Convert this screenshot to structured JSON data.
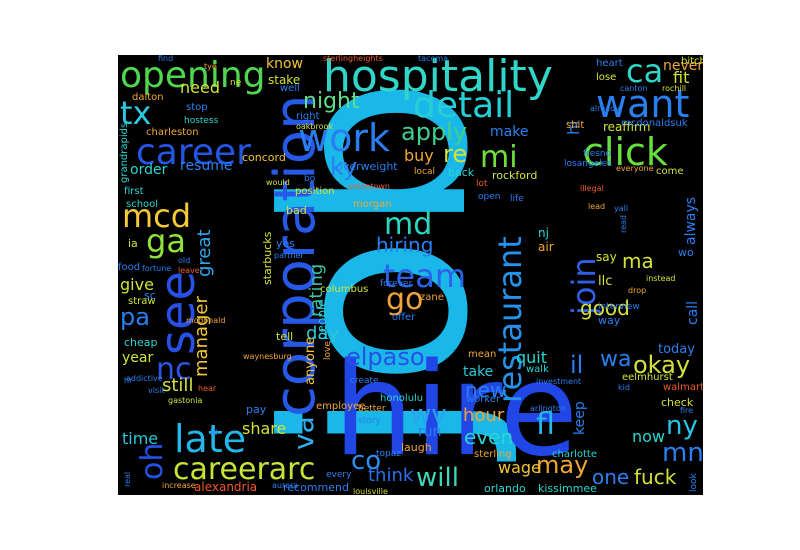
{
  "words": {
    "job": {
      "text": "job",
      "color": "#1ab8e8"
    },
    "hire": {
      "text": "hire",
      "color": "#2146e6"
    },
    "hospitality": {
      "text": "hospitality",
      "color": "#30d6c8"
    },
    "corporation": {
      "text": "corporation",
      "color": "#2559e6"
    },
    "opening": {
      "text": "opening",
      "color": "#4fd84f"
    },
    "work": {
      "text": "work",
      "color": "#2a7ff0"
    },
    "detail": {
      "text": "detail",
      "color": "#26cfd6"
    },
    "want": {
      "text": "want",
      "color": "#2a7ff0"
    },
    "click": {
      "text": "click",
      "color": "#66e040"
    },
    "career": {
      "text": "career",
      "color": "#2555e5"
    },
    "team": {
      "text": "team",
      "color": "#2b62e8"
    },
    "late": {
      "text": "late",
      "color": "#23b6ea"
    },
    "see": {
      "text": "see",
      "color": "#2650e6"
    },
    "restaurant": {
      "text": "restaurant",
      "color": "#2593ec"
    },
    "careerarc": {
      "text": "careerarc",
      "color": "#c8e338"
    },
    "mcd": {
      "text": "mcd",
      "color": "#f6c93a"
    },
    "ga": {
      "text": "ga",
      "color": "#8fe33a"
    },
    "nc": {
      "text": "nc",
      "color": "#2e54e6"
    },
    "oh": {
      "text": "oh",
      "color": "#2350e5"
    },
    "tx": {
      "text": "tx",
      "color": "#2ac9e0"
    },
    "md": {
      "text": "md",
      "color": "#2bd6c0"
    },
    "go": {
      "text": "go",
      "color": "#f0a43a"
    },
    "mi": {
      "text": "mi",
      "color": "#70e03c"
    },
    "apply": {
      "text": "apply",
      "color": "#3fd090"
    },
    "night": {
      "text": "night",
      "color": "#5fdd8a"
    },
    "join": {
      "text": "join",
      "color": "#2f5fe5"
    },
    "va": {
      "text": "va",
      "color": "#2fb0f0"
    },
    "elpaso": {
      "text": "elpaso",
      "color": "#2650e6"
    },
    "wv": {
      "text": "wv",
      "color": "#2aa2f0"
    },
    "fl": {
      "text": "fl",
      "color": "#24b8f0"
    },
    "co": {
      "text": "co",
      "color": "#2a8ff0"
    },
    "will": {
      "text": "will",
      "color": "#3fd5b8"
    },
    "think": {
      "text": "think",
      "color": "#2a70ee"
    },
    "may": {
      "text": "may",
      "color": "#f0a636"
    },
    "mn": {
      "text": "mn",
      "color": "#2a7ff0"
    },
    "ny": {
      "text": "ny",
      "color": "#27c3e6"
    },
    "okay": {
      "text": "okay",
      "color": "#d2e23a"
    },
    "ca": {
      "text": "ca",
      "color": "#30d6c8"
    },
    "ky": {
      "text": "ky",
      "color": "#2a7ff0"
    },
    "re": {
      "text": "re",
      "color": "#d2e23a"
    },
    "hiring": {
      "text": "hiring",
      "color": "#2a7ff0"
    },
    "pa": {
      "text": "pa",
      "color": "#2a7ff0"
    },
    "manager": {
      "text": "manager",
      "color": "#f2c53b"
    },
    "great": {
      "text": "great",
      "color": "#2fa6f0"
    },
    "rating": {
      "text": "rating",
      "color": "#3fbf9f"
    },
    "good": {
      "text": "good",
      "color": "#d7e23a"
    },
    "ma": {
      "text": "ma",
      "color": "#d2e23a"
    },
    "il": {
      "text": "il",
      "color": "#2a7ff0"
    },
    "wa": {
      "text": "wa",
      "color": "#2a7ff0"
    },
    "new": {
      "text": "new",
      "color": "#2a7ff0"
    },
    "hour": {
      "text": "hour",
      "color": "#f0a636"
    },
    "even": {
      "text": "even",
      "color": "#2ad6d0"
    },
    "wage": {
      "text": "wage",
      "color": "#f3c43a"
    },
    "fuck": {
      "text": "fuck",
      "color": "#d2e23a"
    },
    "one": {
      "text": "one",
      "color": "#2a7ff0"
    },
    "now": {
      "text": "now",
      "color": "#2ad6d0"
    },
    "day": {
      "text": "day",
      "color": "#28c8d8"
    },
    "quit": {
      "text": "quit",
      "color": "#2ad6d0"
    },
    "take": {
      "text": "take",
      "color": "#28c8d8"
    },
    "today": {
      "text": "today",
      "color": "#2a7ff0"
    },
    "still": {
      "text": "still",
      "color": "#d2e23a"
    },
    "time": {
      "text": "time",
      "color": "#28c8d8"
    },
    "share": {
      "text": "share",
      "color": "#d2e23a"
    },
    "need": {
      "text": "need",
      "color": "#d2e23a"
    },
    "know": {
      "text": "know",
      "color": "#f3c43a"
    },
    "make": {
      "text": "make",
      "color": "#2a7ff0"
    },
    "buy": {
      "text": "buy",
      "color": "#f0a636"
    },
    "run": {
      "text": "run",
      "color": "#2a7ff0"
    },
    "order": {
      "text": "order",
      "color": "#2ad6d0"
    },
    "resume": {
      "text": "resume",
      "color": "#2a7ff0"
    },
    "give": {
      "text": "give",
      "color": "#d2e23a"
    },
    "year": {
      "text": "year",
      "color": "#d2e23a"
    },
    "call": {
      "text": "call",
      "color": "#2a7ff0"
    },
    "always": {
      "text": "always",
      "color": "#2a7ff0"
    },
    "keep": {
      "text": "keep",
      "color": "#2a7ff0"
    },
    "fit": {
      "text": "fit",
      "color": "#d2e23a"
    },
    "never": {
      "text": "never",
      "color": "#f0a636"
    },
    "hi": {
      "text": "hi",
      "color": "#2a7ff0"
    },
    "nj": {
      "text": "nj",
      "color": "#2ad6d0"
    },
    "say": {
      "text": "say",
      "color": "#d2e23a"
    },
    "llc": {
      "text": "llc",
      "color": "#d2e23a"
    },
    "way": {
      "text": "way",
      "color": "#2a7ff0"
    },
    "air": {
      "text": "air",
      "color": "#f0a636"
    },
    "wo": {
      "text": "wo",
      "color": "#2a7ff0"
    },
    "check": {
      "text": "check",
      "color": "#d2e23a"
    },
    "laugh": {
      "text": "laugh",
      "color": "#f0a636"
    },
    "cheap": {
      "text": "cheap",
      "color": "#2ad6d0"
    },
    "sc": {
      "text": "sc",
      "color": "#2a7ff0"
    },
    "ia": {
      "text": "ia",
      "color": "#d2e23a"
    },
    "straw": {
      "text": "straw",
      "color": "#d2e23a"
    },
    "food": {
      "text": "food",
      "color": "#2a7ff0"
    },
    "school": {
      "text": "school",
      "color": "#2ad6d0"
    },
    "first": {
      "text": "first",
      "color": "#2ad6d0"
    },
    "charleston": {
      "text": "charleston",
      "color": "#f0a636"
    },
    "stop": {
      "text": "stop",
      "color": "#2a7ff0"
    },
    "dalton": {
      "text": "dalton",
      "color": "#f0a636"
    },
    "stake": {
      "text": "stake",
      "color": "#d2e23a"
    },
    "concord": {
      "text": "concord",
      "color": "#f3c43a"
    },
    "position": {
      "text": "position",
      "color": "#d2e23a"
    },
    "bad": {
      "text": "bad",
      "color": "#d2e23a"
    },
    "yes": {
      "text": "yes",
      "color": "#2a7ff0"
    },
    "tell": {
      "text": "tell",
      "color": "#d2e23a"
    },
    "pay": {
      "text": "pay",
      "color": "#2a7ff0"
    },
    "employee": {
      "text": "employee",
      "color": "#f0a636"
    },
    "anyone": {
      "text": "anyone",
      "color": "#f3c43a"
    },
    "people": {
      "text": "people",
      "color": "#28c8d8"
    },
    "starbucks": {
      "text": "starbucks",
      "color": "#d2e23a"
    },
    "recommend": {
      "text": "recommend",
      "color": "#2a7ff0"
    },
    "alexandria": {
      "text": "alexandria",
      "color": "#f05a2a"
    },
    "orlando": {
      "text": "orlando",
      "color": "#2ad6d0"
    },
    "kissimmee": {
      "text": "kissimmee",
      "color": "#2ad6d0"
    },
    "charlotte": {
      "text": "charlotte",
      "color": "#2ad6d0"
    },
    "sterling": {
      "text": "sterling",
      "color": "#f0a636"
    },
    "honolulu": {
      "text": "honolulu",
      "color": "#2ad6d0"
    },
    "eelmhurst": {
      "text": "eelmhurst",
      "color": "#d2e23a"
    },
    "walmart": {
      "text": "walmart",
      "color": "#f05a2a"
    },
    "worker": {
      "text": "worker",
      "color": "#2a7ff0"
    },
    "walk": {
      "text": "walk",
      "color": "#2ad6d0"
    },
    "mean": {
      "text": "mean",
      "color": "#f0a636"
    },
    "offer": {
      "text": "offer",
      "color": "#2a7ff0"
    },
    "zane": {
      "text": "zane",
      "color": "#f0a636"
    },
    "overweight": {
      "text": "overweight",
      "color": "#2a7ff0"
    },
    "rockford": {
      "text": "rockford",
      "color": "#d2e23a"
    },
    "back": {
      "text": "back",
      "color": "#2ad6d0"
    },
    "come": {
      "text": "come",
      "color": "#d2e23a"
    },
    "morgan": {
      "text": "morgan",
      "color": "#f0a636"
    },
    "reaffirm": {
      "text": "reaffirm",
      "color": "#d2e23a"
    },
    "mcdonaldsuk": {
      "text": "mcdonaldsuk",
      "color": "#2a7ff0"
    },
    "lose": {
      "text": "lose",
      "color": "#d2e23a"
    },
    "heart": {
      "text": "heart",
      "color": "#2a7ff0"
    },
    "bitch": {
      "text": "bitch",
      "color": "#d2e23a"
    },
    "shit": {
      "text": "shit",
      "color": "#f0a636"
    },
    "right": {
      "text": "right",
      "color": "#2a7ff0"
    },
    "well": {
      "text": "well",
      "color": "#2a7ff0"
    },
    "hostess": {
      "text": "hostess",
      "color": "#2ad6d0"
    },
    "grandrapids": {
      "text": "grandrapids",
      "color": "#2ad6d0"
    },
    "columbus": {
      "text": "columbus",
      "color": "#d2e23a"
    },
    "forever": {
      "text": "forever",
      "color": "#2a7ff0"
    },
    "interview": {
      "text": "interview",
      "color": "#2a7ff0"
    },
    "fresno": {
      "text": "fresno",
      "color": "#2a7ff0"
    },
    "losangeles": {
      "text": "losangeles",
      "color": "#2a7ff0"
    },
    "local": {
      "text": "local",
      "color": "#f0a636"
    },
    "lot": {
      "text": "lot",
      "color": "#f05a2a"
    },
    "life": {
      "text": "life",
      "color": "#2a7ff0"
    },
    "open": {
      "text": "open",
      "color": "#2a7ff0"
    },
    "create": {
      "text": "create",
      "color": "#2a7ff0"
    },
    "better": {
      "text": "better",
      "color": "#f0a636"
    },
    "story": {
      "text": "story",
      "color": "#2a7ff0"
    },
    "every": {
      "text": "every",
      "color": "#2a7ff0"
    },
    "topaz": {
      "text": "topaz",
      "color": "#2a7ff0"
    },
    "louisville": {
      "text": "louisville",
      "color": "#d2e23a"
    },
    "aurora": {
      "text": "aurora",
      "color": "#2a7ff0"
    },
    "increase": {
      "text": "increase",
      "color": "#f0a636"
    },
    "real": {
      "text": "real",
      "color": "#2a7ff0"
    },
    "gastonia": {
      "text": "gastonia",
      "color": "#d2e23a"
    },
    "visit": {
      "text": "visit",
      "color": "#2a7ff0"
    },
    "waynesburg": {
      "text": "waynesburg",
      "color": "#f0a636"
    },
    "love": {
      "text": "love",
      "color": "#f0a636"
    },
    "kid": {
      "text": "kid",
      "color": "#2a7ff0"
    },
    "hear": {
      "text": "hear",
      "color": "#f05a2a"
    },
    "investment": {
      "text": "investment",
      "color": "#2a7ff0"
    },
    "arlington": {
      "text": "arlington",
      "color": "#2a7ff0"
    },
    "fire": {
      "text": "fire",
      "color": "#2a7ff0"
    },
    "look": {
      "text": "look",
      "color": "#2a7ff0"
    },
    "illegal": {
      "text": "illegal",
      "color": "#f05a2a"
    },
    "canton": {
      "text": "canton",
      "color": "#2a7ff0"
    },
    "rochill": {
      "text": "rochill",
      "color": "#d2e23a"
    },
    "already": {
      "text": "already",
      "color": "#2a7ff0"
    },
    "everyone": {
      "text": "everyone",
      "color": "#f0a636"
    },
    "instead": {
      "text": "instead",
      "color": "#d2e23a"
    },
    "drop": {
      "text": "drop",
      "color": "#f0a636"
    },
    "read": {
      "text": "read",
      "color": "#2a7ff0"
    },
    "yall": {
      "text": "yall",
      "color": "#2a7ff0"
    },
    "lead": {
      "text": "lead",
      "color": "#f0a636"
    },
    "partner": {
      "text": "partner",
      "color": "#2a7ff0"
    },
    "mcdonald": {
      "text": "mcdonald",
      "color": "#f0a636"
    },
    "fortune": {
      "text": "fortune",
      "color": "#2a7ff0"
    },
    "leave": {
      "text": "leave",
      "color": "#f05a2a"
    },
    "old": {
      "text": "old",
      "color": "#2a7ff0"
    },
    "find": {
      "text": "find",
      "color": "#2a7ff0"
    },
    "tye": {
      "text": "tye",
      "color": "#f0a636"
    },
    "tacoma": {
      "text": "tacoma",
      "color": "#2a7ff0"
    },
    "sterlingheights": {
      "text": "sterlingheights",
      "color": "#f05a2a"
    },
    "oakbrook": {
      "text": "oakbrook",
      "color": "#d2e23a"
    },
    "uniontown": {
      "text": "uniontown",
      "color": "#f05a2a"
    },
    "ne": {
      "text": "ne",
      "color": "#d2e23a"
    },
    "bo": {
      "text": "bo",
      "color": "#2a7ff0"
    },
    "addictive": {
      "text": "addictive",
      "color": "#2a7ff0"
    },
    "id": {
      "text": "id",
      "color": "#2a7ff0"
    },
    "hr": {
      "text": "hr",
      "color": "#2a7ff0"
    },
    "would": {
      "text": "would",
      "color": "#d2e23a"
    }
  }
}
